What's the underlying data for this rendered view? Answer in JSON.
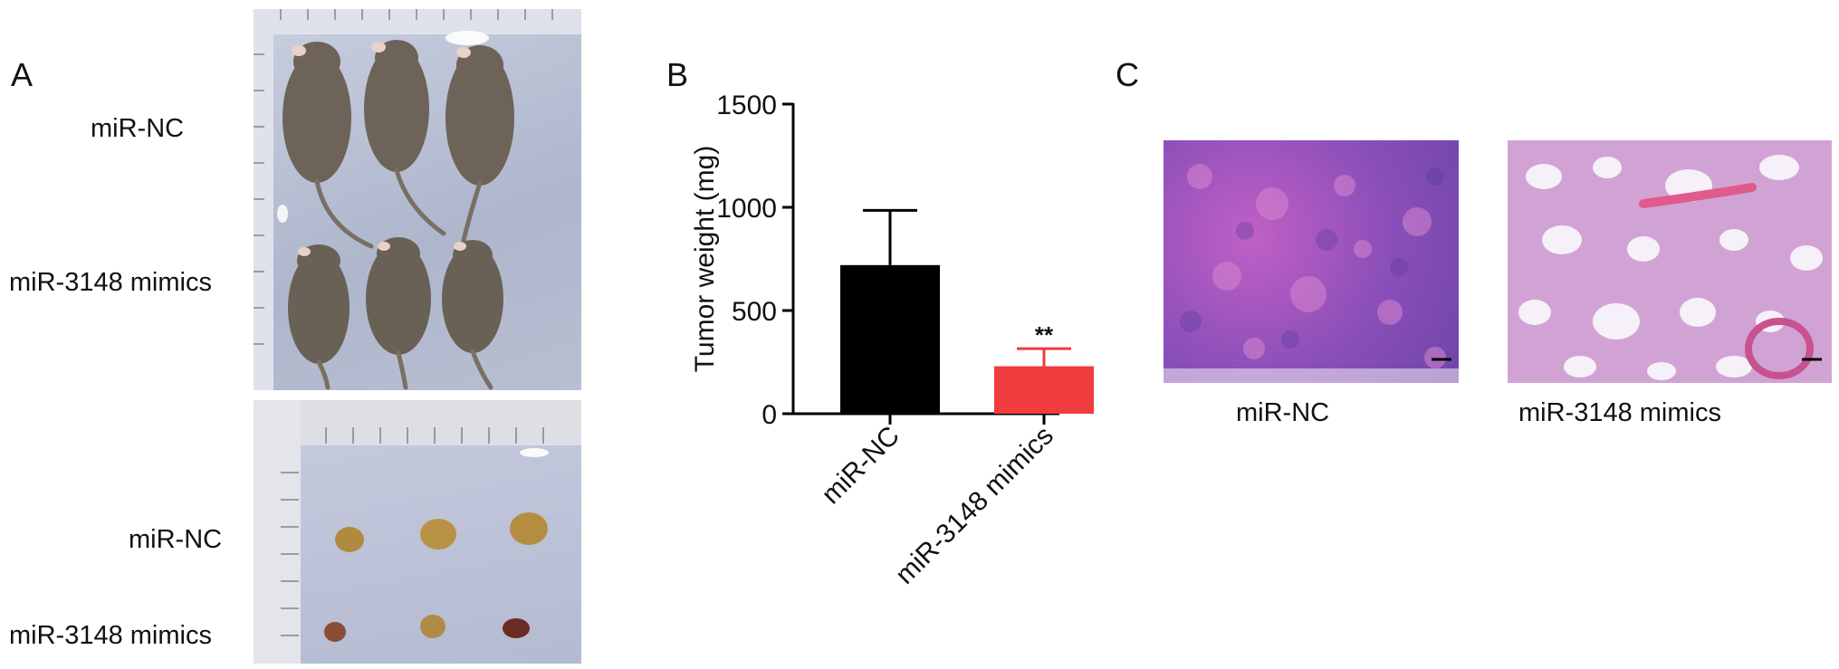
{
  "panels": {
    "a": {
      "letter": "A",
      "photo_top_labels": [
        "miR-NC",
        "miR-3148 mimics"
      ],
      "photo_bottom_labels": [
        "miR-NC",
        "miR-3148 mimics"
      ]
    },
    "b": {
      "letter": "B"
    },
    "c": {
      "letter": "C",
      "captions": [
        "miR-NC",
        "miR-3148 mimics"
      ]
    }
  },
  "chart_data": {
    "type": "bar",
    "categories": [
      "miR-NC",
      "miR-3148 mimics"
    ],
    "values": [
      720,
      230
    ],
    "errors": [
      265,
      85
    ],
    "colors": [
      "#000000",
      "#f03c3c"
    ],
    "ylabel": "Tumor weight (mg)",
    "ylim": [
      0,
      1500
    ],
    "yticks": [
      0,
      500,
      1000,
      1500
    ],
    "annotations": [
      {
        "category": "miR-3148 mimics",
        "text": "**"
      }
    ],
    "grid": false
  }
}
